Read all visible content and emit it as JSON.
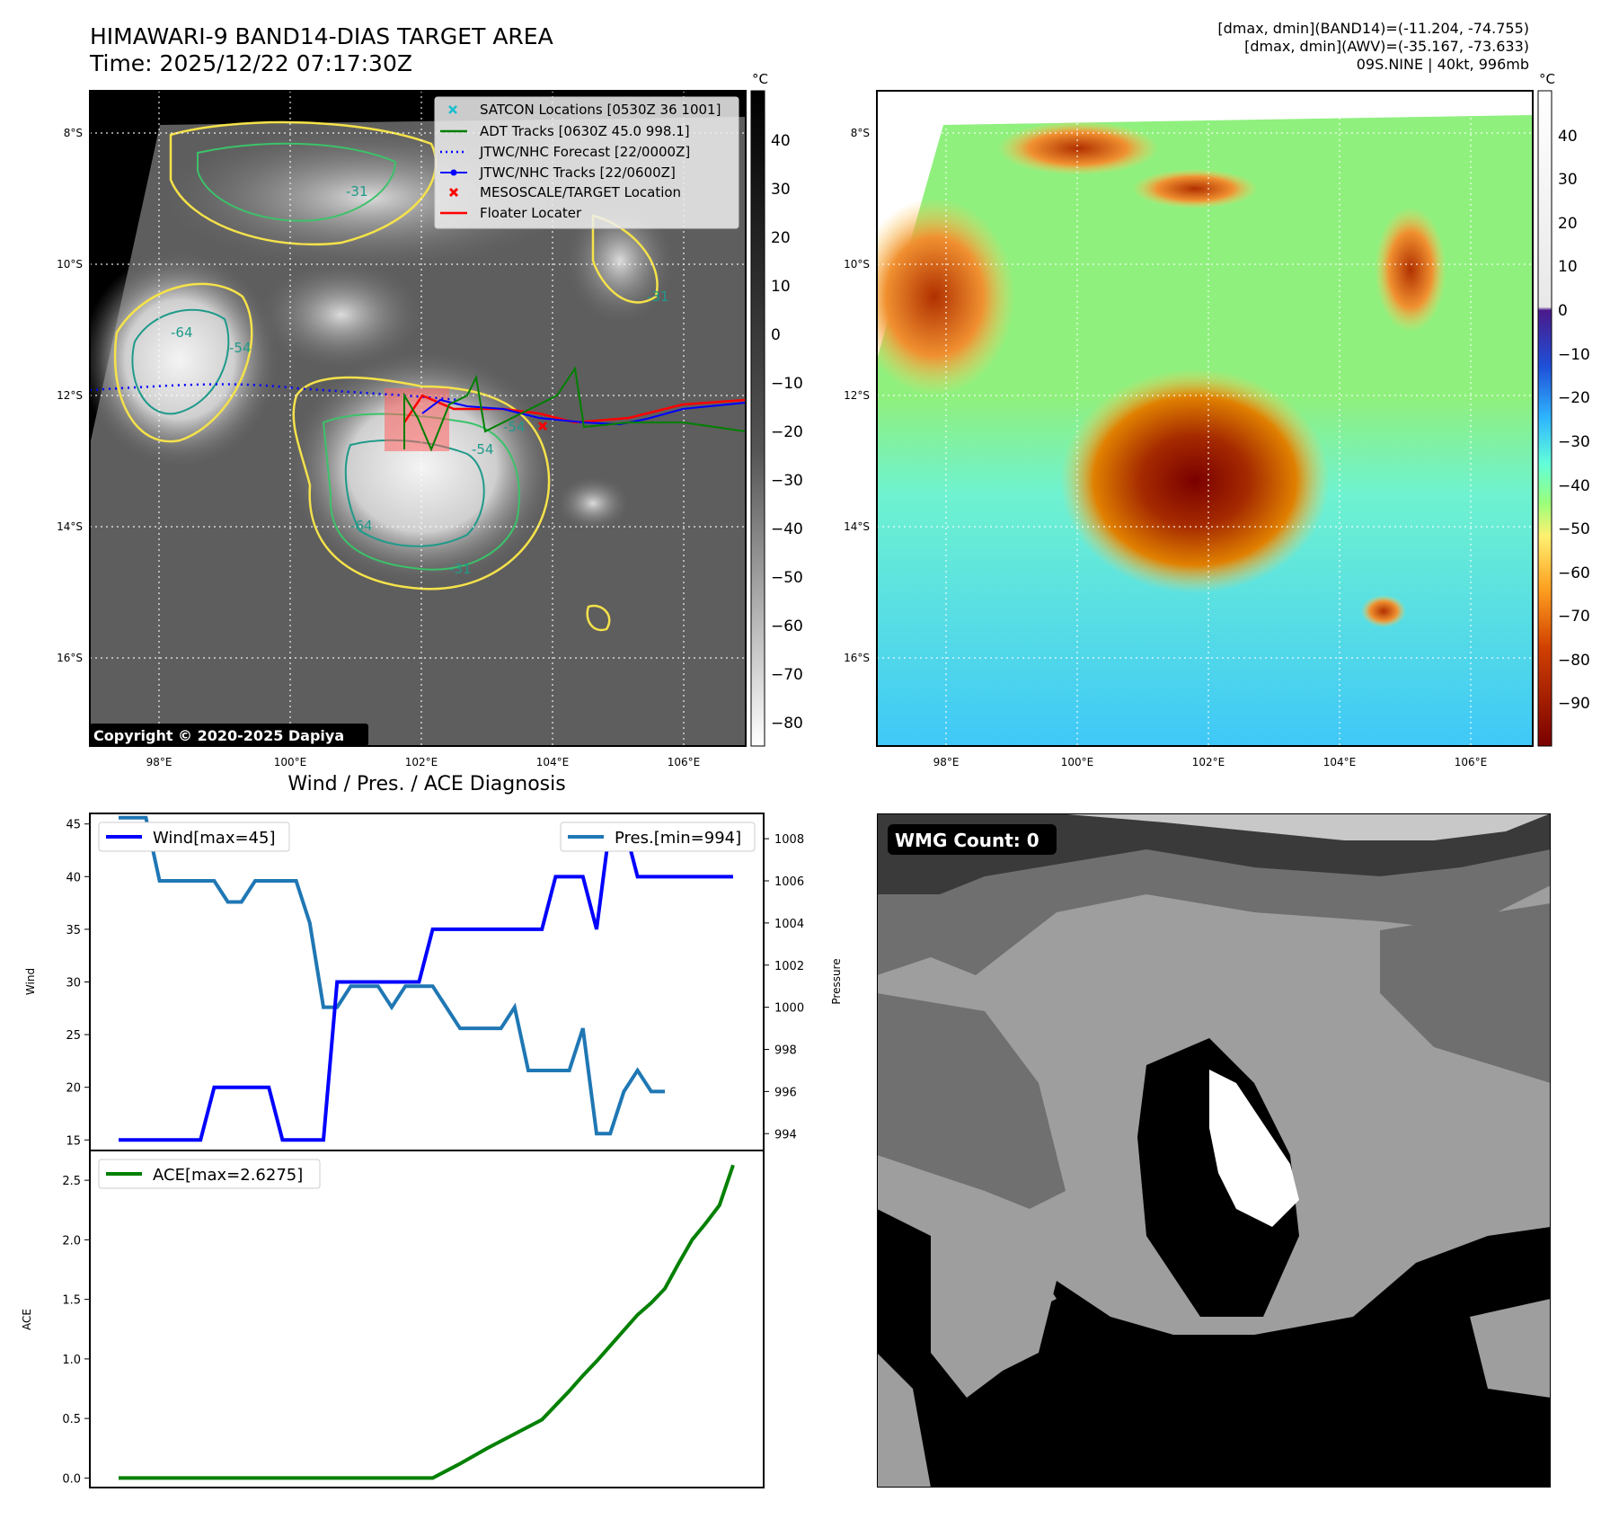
{
  "header": {
    "title_line1": "HIMAWARI-9 BAND14-DIAS TARGET AREA",
    "title_line2": "Time: 2025/12/22 07:17:30Z",
    "stats_line1": "[dmax, dmin](BAND14)=(-11.204, -74.755)",
    "stats_line2": "[dmax, dmin](AWV)=(-35.167, -73.633)",
    "stats_line3": "09S.NINE | 40kt, 996mb"
  },
  "map_axes": {
    "lat_labels": [
      "8°S",
      "10°S",
      "12°S",
      "14°S",
      "16°S"
    ],
    "lon_labels": [
      "98°E",
      "100°E",
      "102°E",
      "104°E",
      "106°E"
    ],
    "cbar_unit": "°C",
    "cbar1_ticks": [
      "40",
      "30",
      "20",
      "10",
      "0",
      "−10",
      "−20",
      "−30",
      "−40",
      "−50",
      "−60",
      "−70",
      "−80"
    ],
    "cbar2_ticks": [
      "40",
      "30",
      "20",
      "10",
      "0",
      "−10",
      "−20",
      "−30",
      "−40",
      "−50",
      "−60",
      "−70",
      "−80",
      "−90"
    ],
    "contour_labels": [
      "-64",
      "-54",
      "-31",
      "-64",
      "-54",
      "-31",
      "-54",
      "-31"
    ],
    "copyright": "Copyright © 2020-2025 Dapiya",
    "legend": [
      {
        "label": "SATCON Locations [0530Z 36 1001]",
        "color": "#17becf",
        "marker": "x"
      },
      {
        "label": "ADT Tracks [0630Z 45.0 998.1]",
        "color": "#008000",
        "marker": "line"
      },
      {
        "label": "JTWC/NHC Forecast [22/0000Z]",
        "color": "#0000ff",
        "marker": "dotted"
      },
      {
        "label": "JTWC/NHC Tracks [22/0600Z]",
        "color": "#0000ff",
        "marker": "dotline"
      },
      {
        "label": "MESOSCALE/TARGET Location",
        "color": "#ff0000",
        "marker": "x"
      },
      {
        "label": "Floater Locater",
        "color": "#ff0000",
        "marker": "line"
      }
    ]
  },
  "diagnosis": {
    "title": "Wind / Pres. / ACE Diagnosis",
    "wmg_label": "WMG Count: 0"
  },
  "chart_data": [
    {
      "type": "line",
      "title": "Wind / Pres. / ACE Diagnosis",
      "ylabel": "Wind",
      "y2label": "Pressure",
      "ylim": [
        14,
        46
      ],
      "y2lim": [
        993.2,
        1009.2
      ],
      "yticks": [
        15,
        20,
        25,
        30,
        35,
        40,
        45
      ],
      "y2ticks": [
        994,
        996,
        998,
        1000,
        1002,
        1004,
        1006,
        1008
      ],
      "series": [
        {
          "name": "Wind[max=45]",
          "color": "#0000ff",
          "axis": "left",
          "x": [
            0,
            1,
            2,
            3,
            4,
            5,
            6,
            7,
            8,
            9,
            10,
            11,
            12,
            13,
            14,
            15,
            16,
            17,
            18,
            19,
            20,
            21,
            22,
            23,
            24,
            25,
            26,
            27,
            28,
            29,
            30,
            31,
            32,
            33,
            34,
            35,
            36,
            37,
            38,
            39,
            40,
            41,
            42,
            43,
            44,
            45
          ],
          "values": [
            15,
            15,
            15,
            15,
            15,
            15,
            15,
            20,
            20,
            20,
            20,
            20,
            15,
            15,
            15,
            15,
            30,
            30,
            30,
            30,
            30,
            30,
            30,
            35,
            35,
            35,
            35,
            35,
            35,
            35,
            35,
            35,
            40,
            40,
            40,
            35,
            45,
            45,
            40,
            40,
            40,
            40,
            40,
            40,
            40,
            40
          ]
        },
        {
          "name": "Pres.[min=994]",
          "color": "#1f77b4",
          "axis": "right",
          "x": [
            0,
            1,
            2,
            3,
            4,
            5,
            6,
            7,
            8,
            9,
            10,
            11,
            12,
            13,
            14,
            15,
            16,
            17,
            18,
            19,
            20,
            21,
            22,
            23,
            24,
            25,
            26,
            27,
            28,
            29,
            30,
            31,
            32,
            33,
            34,
            35,
            36,
            37,
            38,
            39,
            40
          ],
          "values": [
            1009,
            1009,
            1009,
            1006,
            1006,
            1006,
            1006,
            1006,
            1005,
            1005,
            1006,
            1006,
            1006,
            1006,
            1004,
            1000,
            1000,
            1001,
            1001,
            1001,
            1000,
            1001,
            1001,
            1001,
            1000,
            999,
            999,
            999,
            999,
            1000,
            997,
            997,
            997,
            997,
            999,
            994,
            994,
            996,
            997,
            996,
            996
          ]
        }
      ]
    },
    {
      "type": "line",
      "ylabel": "ACE",
      "ylim": [
        -0.08,
        2.75
      ],
      "yticks": [
        "0.0",
        "0.5",
        "1.0",
        "1.5",
        "2.0",
        "2.5"
      ],
      "series": [
        {
          "name": "ACE[max=2.6275]",
          "color": "#008000",
          "x": [
            0,
            23,
            25,
            27,
            29,
            31,
            32,
            33,
            34,
            35,
            36,
            37,
            38,
            39,
            40,
            41,
            42,
            43,
            44,
            45
          ],
          "values": [
            0,
            0,
            0.12,
            0.25,
            0.37,
            0.49,
            0.61,
            0.73,
            0.86,
            0.98,
            1.11,
            1.24,
            1.37,
            1.47,
            1.59,
            1.8,
            2.0,
            2.14,
            2.29,
            2.6275
          ]
        }
      ]
    }
  ]
}
